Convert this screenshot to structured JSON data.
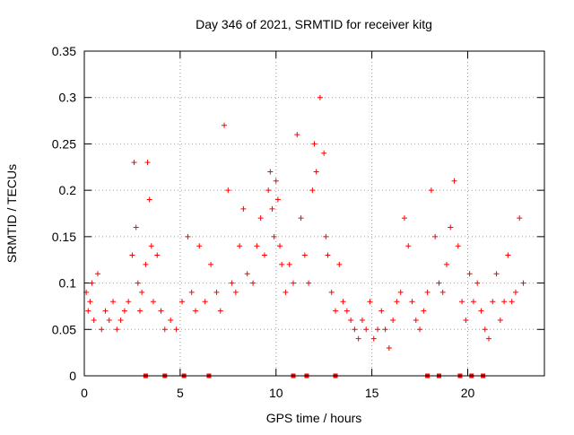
{
  "chart_data": {
    "type": "scatter",
    "title": "Day 346 of 2021, SRMTID for receiver kitg",
    "xlabel": "GPS time / hours",
    "ylabel": "SRMTID / TECUs",
    "xlim": [
      0,
      24
    ],
    "ylim": [
      0,
      0.35
    ],
    "xticks": [
      "0",
      "5",
      "10",
      "15",
      "20"
    ],
    "xtick_values": [
      0,
      5,
      10,
      15,
      20
    ],
    "yticks": [
      "0",
      "0.05",
      "0.1",
      "0.15",
      "0.2",
      "0.25",
      "0.3",
      "0.35"
    ],
    "ytick_values": [
      0,
      0.05,
      0.1,
      0.15,
      0.2,
      0.25,
      0.3,
      0.35
    ],
    "grid": true,
    "marker": "+",
    "series_color": "#ff0000",
    "series": [
      {
        "name": "SRMTID",
        "x": [
          0.1,
          0.2,
          0.3,
          0.4,
          0.5,
          0.7,
          0.9,
          1.1,
          1.3,
          1.5,
          1.7,
          1.9,
          2.1,
          2.3,
          2.5,
          2.6,
          2.7,
          2.8,
          2.9,
          3.0,
          3.2,
          3.3,
          3.4,
          3.5,
          3.6,
          3.8,
          4.0,
          4.2,
          4.5,
          4.8,
          5.1,
          5.4,
          5.6,
          5.8,
          6.0,
          6.3,
          6.6,
          6.9,
          7.1,
          7.3,
          7.5,
          7.7,
          7.9,
          8.1,
          8.3,
          8.5,
          8.8,
          9.0,
          9.2,
          9.4,
          9.6,
          9.7,
          9.8,
          9.9,
          10.0,
          10.1,
          10.2,
          10.3,
          10.5,
          10.7,
          10.9,
          11.1,
          11.3,
          11.5,
          11.7,
          11.9,
          12.0,
          12.1,
          12.3,
          12.5,
          12.6,
          12.7,
          12.9,
          13.1,
          13.3,
          13.5,
          13.7,
          13.9,
          14.1,
          14.3,
          14.5,
          14.7,
          14.9,
          15.1,
          15.3,
          15.5,
          15.7,
          15.9,
          16.1,
          16.3,
          16.5,
          16.7,
          16.9,
          17.1,
          17.3,
          17.5,
          17.7,
          17.9,
          18.1,
          18.3,
          18.5,
          18.7,
          18.9,
          19.1,
          19.3,
          19.5,
          19.7,
          19.9,
          20.1,
          20.3,
          20.5,
          20.7,
          20.9,
          21.1,
          21.3,
          21.5,
          21.7,
          21.9,
          22.1,
          22.3,
          22.5,
          22.7,
          22.9
        ],
        "y": [
          0.09,
          0.07,
          0.08,
          0.1,
          0.06,
          0.11,
          0.05,
          0.07,
          0.06,
          0.08,
          0.05,
          0.06,
          0.07,
          0.08,
          0.13,
          0.23,
          0.16,
          0.1,
          0.07,
          0.09,
          0.12,
          0.23,
          0.19,
          0.14,
          0.08,
          0.13,
          0.07,
          0.05,
          0.06,
          0.05,
          0.08,
          0.15,
          0.09,
          0.07,
          0.14,
          0.08,
          0.12,
          0.09,
          0.07,
          0.27,
          0.2,
          0.1,
          0.09,
          0.14,
          0.18,
          0.11,
          0.1,
          0.14,
          0.17,
          0.13,
          0.2,
          0.22,
          0.18,
          0.15,
          0.21,
          0.19,
          0.14,
          0.12,
          0.09,
          0.12,
          0.1,
          0.26,
          0.17,
          0.13,
          0.1,
          0.2,
          0.25,
          0.22,
          0.3,
          0.24,
          0.15,
          0.13,
          0.09,
          0.07,
          0.12,
          0.08,
          0.07,
          0.06,
          0.05,
          0.04,
          0.06,
          0.05,
          0.08,
          0.04,
          0.05,
          0.07,
          0.05,
          0.03,
          0.06,
          0.08,
          0.09,
          0.17,
          0.14,
          0.08,
          0.06,
          0.05,
          0.07,
          0.09,
          0.2,
          0.15,
          0.1,
          0.09,
          0.12,
          0.16,
          0.21,
          0.14,
          0.08,
          0.06,
          0.11,
          0.08,
          0.1,
          0.07,
          0.05,
          0.04,
          0.08,
          0.11,
          0.06,
          0.08,
          0.13,
          0.08,
          0.09,
          0.17,
          0.1
        ]
      },
      {
        "name": "markers",
        "marker": "square",
        "y_level": 0,
        "x": [
          3.2,
          4.2,
          5.2,
          6.5,
          10.9,
          11.6,
          13.1,
          17.9,
          18.5,
          19.6,
          20.2,
          20.8
        ]
      }
    ]
  }
}
